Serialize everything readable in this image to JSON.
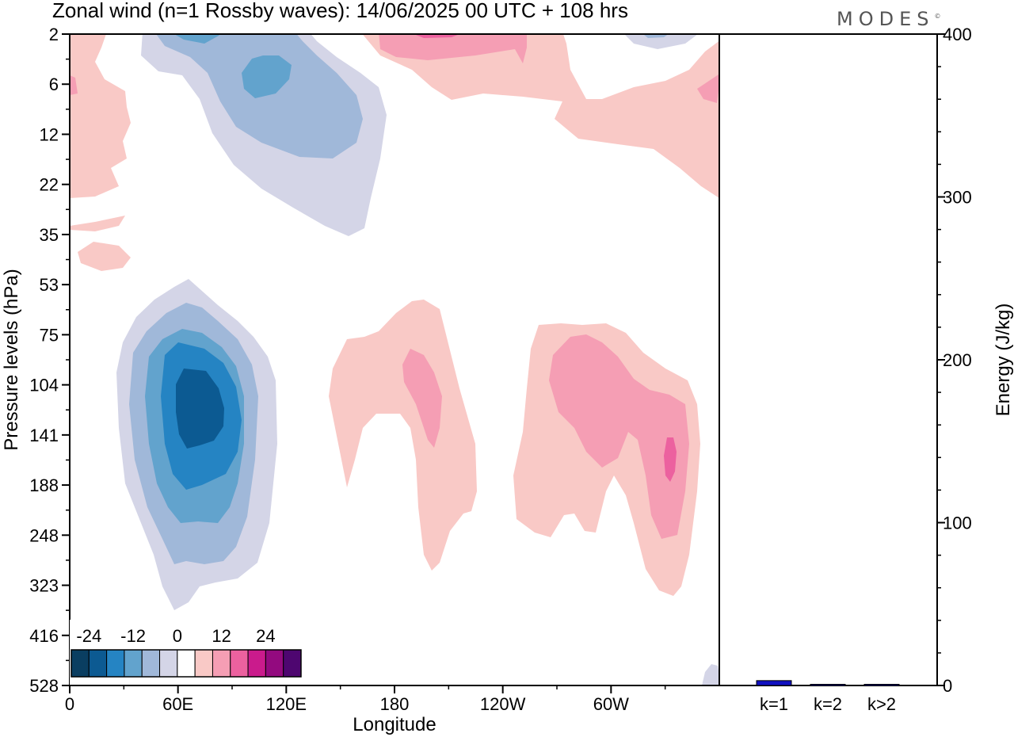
{
  "title": "Zonal wind (n=1 Rossby waves):  14/06/2025  00 UTC  + 108 hrs",
  "brand": "MODES",
  "brand_mark": "©",
  "chart_data": [
    {
      "type": "heatmap",
      "title": "Zonal wind (n=1 Rossby waves):  14/06/2025  00 UTC  + 108 hrs",
      "xlabel": "Longitude",
      "ylabel": "Pressure levels (hPa)",
      "x_ticks": [
        "0",
        "60E",
        "120E",
        "180",
        "120W",
        "60W"
      ],
      "x_tick_degrees": [
        0,
        60,
        120,
        180,
        240,
        300
      ],
      "xlim": [
        0,
        360
      ],
      "y_ticks": [
        "2",
        "6",
        "12",
        "22",
        "35",
        "53",
        "75",
        "104",
        "141",
        "188",
        "248",
        "323",
        "416",
        "528"
      ],
      "y_direction": "top-down",
      "colorbar": {
        "labels": [
          "-24",
          "-12",
          "0",
          "12",
          "24"
        ],
        "levels": [
          -30,
          -25,
          -20,
          -15,
          -10,
          -5,
          0,
          5,
          10,
          15,
          20,
          25,
          30
        ],
        "colors": [
          "#0a3e61",
          "#0c5a92",
          "#2584c3",
          "#62a3cd",
          "#a0b8d9",
          "#d4d5e7",
          "#ffffff",
          "#f9c9c6",
          "#f59eb4",
          "#ec619f",
          "#ca1b8c",
          "#930a7f",
          "#4e0670"
        ]
      },
      "features": [
        {
          "sign": "negative",
          "center_lon": 65,
          "center_level": "141",
          "peak": -24,
          "top_level": "53",
          "bottom_level": "416"
        },
        {
          "sign": "negative",
          "center_lon": 110,
          "center_level": "6",
          "peak": -12,
          "top_level": "2",
          "bottom_level": "35"
        },
        {
          "sign": "positive",
          "center_lon": 195,
          "center_level": "104",
          "peak": 10,
          "top_level": "53",
          "bottom_level": "323"
        },
        {
          "sign": "positive",
          "center_lon": 330,
          "center_level": "141",
          "peak": 18,
          "top_level": "75",
          "bottom_level": "323"
        },
        {
          "sign": "positive",
          "center_lon": 300,
          "center_level": "6",
          "peak": 10,
          "top_level": "2",
          "bottom_level": "22"
        }
      ]
    },
    {
      "type": "bar",
      "categories": [
        "k=1",
        "k=2",
        "k>2"
      ],
      "values": [
        3,
        0.5,
        0.6
      ],
      "ylabel": "Energy (J/kg)",
      "ylim": [
        0,
        400
      ],
      "y_ticks": [
        0,
        100,
        200,
        300,
        400
      ],
      "bar_color": "#1010c0"
    }
  ]
}
